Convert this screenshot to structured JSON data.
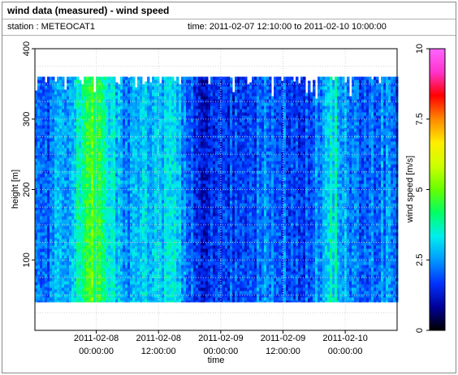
{
  "header": {
    "title": "wind data (measured) - wind speed",
    "station": "station : METEOCAT1",
    "time_range": "time: 2011-02-07 12:10:00 to 2011-02-10 10:00:00"
  },
  "chart_data": {
    "type": "heatmap",
    "xlabel": "time",
    "ylabel": "height [m]",
    "colorbar_label": "wind speed [m/s]",
    "x_range": [
      "2011-02-07 12:10:00",
      "2011-02-10 10:00:00"
    ],
    "x_ticks": [
      {
        "date": "2011-02-08",
        "time": "00:00:00",
        "value": "2011-02-08 00:00:00"
      },
      {
        "date": "2011-02-08",
        "time": "12:00:00",
        "value": "2011-02-08 12:00:00"
      },
      {
        "date": "2011-02-09",
        "time": "00:00:00",
        "value": "2011-02-09 00:00:00"
      },
      {
        "date": "2011-02-09",
        "time": "12:00:00",
        "value": "2011-02-09 12:00:00"
      },
      {
        "date": "2011-02-10",
        "time": "00:00:00",
        "value": "2011-02-10 00:00:00"
      }
    ],
    "ylim": [
      0,
      400
    ],
    "y_ticks": [
      "100",
      "200",
      "300",
      "400"
    ],
    "height_range": [
      40,
      360
    ],
    "colorbar_range": [
      0,
      10
    ],
    "colorbar_ticks": [
      "0",
      "2.5",
      "5",
      "7.5",
      "10"
    ],
    "colormap": [
      "#000000",
      "#000099",
      "#0033ff",
      "#0099ff",
      "#00eeee",
      "#00ff66",
      "#66ff00",
      "#ccff00",
      "#ffee00",
      "#ff8800",
      "#ff0000",
      "#ff33cc",
      "#ff66ff"
    ],
    "grid": true,
    "speed_profile": [
      {
        "time": "2011-02-07 12:10:00",
        "speed": 2.2
      },
      {
        "time": "2011-02-07 18:00:00",
        "speed": 2.6
      },
      {
        "time": "2011-02-07 21:00:00",
        "speed": 3.8
      },
      {
        "time": "2011-02-07 23:00:00",
        "speed": 5.0
      },
      {
        "time": "2011-02-08 02:00:00",
        "speed": 3.6
      },
      {
        "time": "2011-02-08 06:00:00",
        "speed": 2.3
      },
      {
        "time": "2011-02-08 09:00:00",
        "speed": 2.9
      },
      {
        "time": "2011-02-08 12:00:00",
        "speed": 3.0
      },
      {
        "time": "2011-02-08 15:00:00",
        "speed": 3.3
      },
      {
        "time": "2011-02-08 18:00:00",
        "speed": 2.0
      },
      {
        "time": "2011-02-08 21:00:00",
        "speed": 1.6
      },
      {
        "time": "2011-02-09 00:00:00",
        "speed": 2.1
      },
      {
        "time": "2011-02-09 04:00:00",
        "speed": 1.7
      },
      {
        "time": "2011-02-09 08:00:00",
        "speed": 2.4
      },
      {
        "time": "2011-02-09 12:00:00",
        "speed": 2.2
      },
      {
        "time": "2011-02-09 16:00:00",
        "speed": 1.9
      },
      {
        "time": "2011-02-09 20:00:00",
        "speed": 2.8
      },
      {
        "time": "2011-02-09 22:00:00",
        "speed": 3.6
      },
      {
        "time": "2011-02-10 00:00:00",
        "speed": 2.5
      },
      {
        "time": "2011-02-10 04:00:00",
        "speed": 2.2
      },
      {
        "time": "2011-02-10 08:00:00",
        "speed": 2.5
      },
      {
        "time": "2011-02-10 10:00:00",
        "speed": 2.6
      }
    ]
  }
}
